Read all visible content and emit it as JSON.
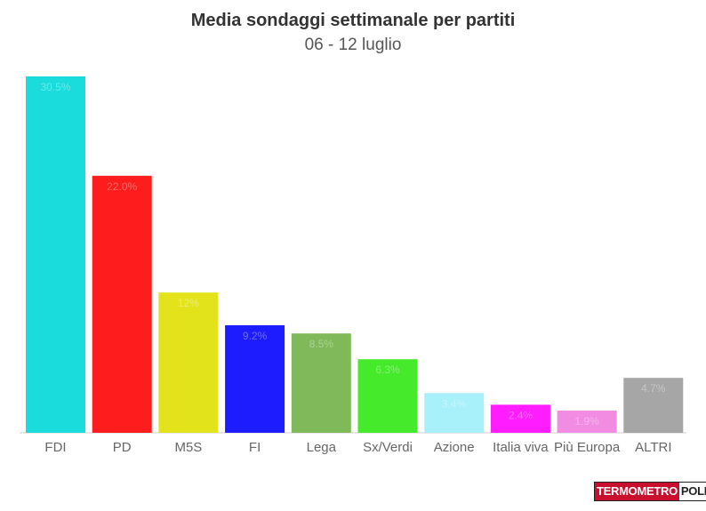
{
  "chart_data": {
    "type": "bar",
    "title": "Media sondaggi settimanale per partiti",
    "subtitle": "06 - 12 luglio",
    "categories": [
      "FDI",
      "PD",
      "M5S",
      "FI",
      "Lega",
      "Sx/Verdi",
      "Azione",
      "Italia viva",
      "Più Europa",
      "ALTRI"
    ],
    "values": [
      30.5,
      22.0,
      12.0,
      9.2,
      8.5,
      6.3,
      3.4,
      2.4,
      1.9,
      4.7
    ],
    "value_labels": [
      "30.5%",
      "22.0%",
      "12%",
      "9.2%",
      "8.5%",
      "6.3%",
      "3.4%",
      "2.4%",
      "1.9%",
      "4.7%"
    ],
    "colors": [
      "#1adcdc",
      "#ff1c1c",
      "#e3e31c",
      "#1c1cff",
      "#80b95a",
      "#45ea2a",
      "#a8f0fa",
      "#ff1cff",
      "#f28ce3",
      "#a6a6a6"
    ],
    "ylim": [
      0,
      31
    ],
    "grid": false,
    "legend": "none"
  },
  "logo": {
    "part1": "TERMOMETRO",
    "part2": "POLITICO"
  }
}
